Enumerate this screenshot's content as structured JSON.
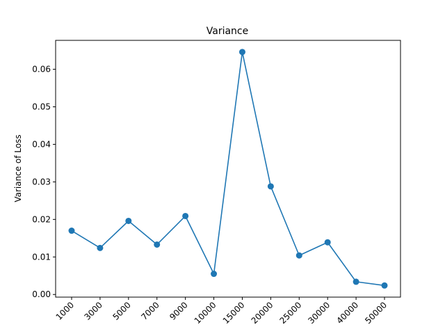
{
  "chart_data": {
    "type": "line",
    "title": "Variance",
    "xlabel": "",
    "ylabel": "Variance of Loss",
    "categories": [
      "1000",
      "3000",
      "5000",
      "7000",
      "9000",
      "10000",
      "15000",
      "20000",
      "25000",
      "30000",
      "40000",
      "50000"
    ],
    "series": [
      {
        "values": [
          0.017,
          0.0124,
          0.0196,
          0.0133,
          0.0209,
          0.0055,
          0.0646,
          0.0288,
          0.0104,
          0.0139,
          0.0034,
          0.0024
        ],
        "color": "#1f77b4",
        "marker": "circle"
      }
    ],
    "ylim": [
      -0.0007,
      0.0677
    ],
    "yticks": [
      0.0,
      0.01,
      0.02,
      0.03,
      0.04,
      0.05,
      0.06
    ],
    "ytick_labels": [
      "0.00",
      "0.01",
      "0.02",
      "0.03",
      "0.04",
      "0.05",
      "0.06"
    ],
    "xtick_rotation": 45,
    "grid": false,
    "legend": "none"
  }
}
